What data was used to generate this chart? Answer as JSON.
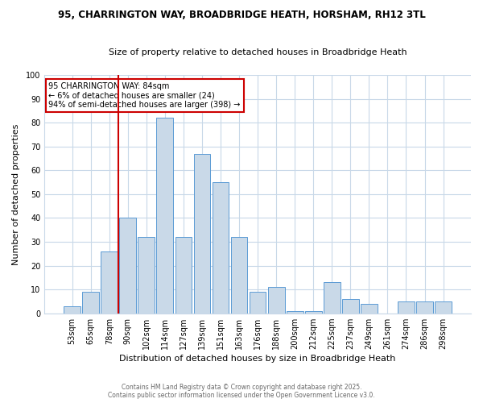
{
  "title1": "95, CHARRINGTON WAY, BROADBRIDGE HEATH, HORSHAM, RH12 3TL",
  "title2": "Size of property relative to detached houses in Broadbridge Heath",
  "xlabel": "Distribution of detached houses by size in Broadbridge Heath",
  "ylabel": "Number of detached properties",
  "categories": [
    "53sqm",
    "65sqm",
    "78sqm",
    "90sqm",
    "102sqm",
    "114sqm",
    "127sqm",
    "139sqm",
    "151sqm",
    "163sqm",
    "176sqm",
    "188sqm",
    "200sqm",
    "212sqm",
    "225sqm",
    "237sqm",
    "249sqm",
    "261sqm",
    "274sqm",
    "286sqm",
    "298sqm"
  ],
  "values": [
    3,
    9,
    26,
    40,
    32,
    82,
    32,
    67,
    55,
    32,
    9,
    11,
    1,
    1,
    13,
    6,
    4,
    0,
    5,
    5,
    5
  ],
  "bar_color": "#c9d9e8",
  "bar_edge_color": "#5b9bd5",
  "vline_color": "#cc0000",
  "annotation_text": "95 CHARRINGTON WAY: 84sqm\n← 6% of detached houses are smaller (24)\n94% of semi-detached houses are larger (398) →",
  "annotation_box_color": "white",
  "annotation_box_edge": "#cc0000",
  "ylim": [
    0,
    100
  ],
  "yticks": [
    0,
    10,
    20,
    30,
    40,
    50,
    60,
    70,
    80,
    90,
    100
  ],
  "footer_line1": "Contains HM Land Registry data © Crown copyright and database right 2025.",
  "footer_line2": "Contains public sector information licensed under the Open Government Licence v3.0.",
  "bg_color": "#ffffff",
  "grid_color": "#c8d8e8"
}
